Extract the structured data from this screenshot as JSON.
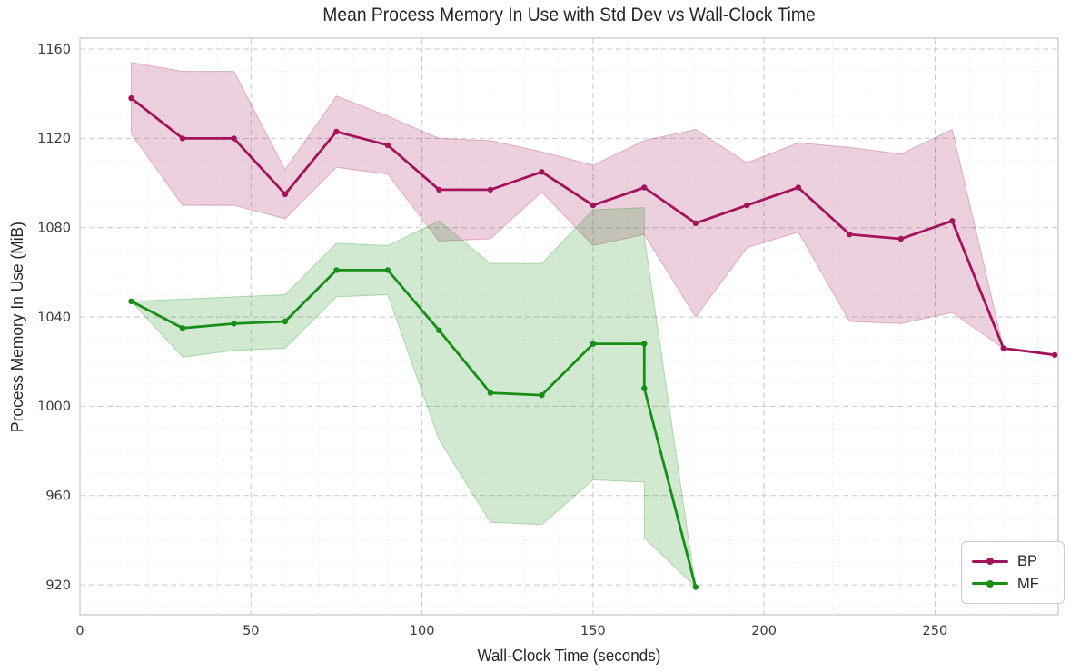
{
  "chart_data": {
    "type": "line",
    "title": "Mean Process Memory In Use with Std Dev vs Wall-Clock Time",
    "xlabel": "Wall-Clock Time (seconds)",
    "ylabel": "Process Memory In Use (MiB)",
    "xlim": [
      0,
      286
    ],
    "ylim": [
      906.6,
      1164.9
    ],
    "xticks": [
      0,
      50,
      100,
      150,
      200,
      250
    ],
    "yticks": [
      920,
      960,
      1000,
      1040,
      1080,
      1120,
      1160
    ],
    "grid": {
      "major": "dashed",
      "minor": "dotted",
      "minor_x_step": 10,
      "minor_y_step": 10
    },
    "band_meaning": "mean ± std dev",
    "legend_position": "lower right",
    "series": [
      {
        "name": "BP",
        "color": "#a3135c",
        "band_fill_alpha": 0.2,
        "x": [
          15,
          30,
          45,
          60,
          75,
          90,
          105,
          120,
          135,
          150,
          165,
          180,
          195,
          210,
          225,
          240,
          255,
          270,
          285
        ],
        "mean": [
          1138,
          1120,
          1120,
          1095,
          1123,
          1117,
          1097,
          1097,
          1105,
          1090,
          1098,
          1082,
          1090,
          1098,
          1077,
          1075,
          1083,
          1026,
          1023
        ],
        "upper": [
          1154,
          1150,
          1150,
          1106,
          1139,
          1130,
          1120,
          1119,
          1114,
          1108,
          1119,
          1124,
          1109,
          1118,
          1116,
          1113,
          1124,
          1026,
          1023
        ],
        "lower": [
          1122,
          1090,
          1090,
          1084,
          1107,
          1104,
          1074,
          1075,
          1096,
          1072,
          1077,
          1040,
          1071,
          1078,
          1038,
          1037,
          1042,
          1026,
          1023
        ]
      },
      {
        "name": "MF",
        "color": "#178f17",
        "band_fill_alpha": 0.2,
        "x": [
          15,
          30,
          45,
          60,
          75,
          90,
          105,
          120,
          135,
          150,
          165,
          165,
          180
        ],
        "mean": [
          1047,
          1035,
          1037,
          1038,
          1061,
          1061,
          1034,
          1006,
          1005,
          1028,
          1028,
          1008,
          919
        ],
        "upper": [
          1047,
          1048,
          1049,
          1050,
          1073,
          1072,
          1083,
          1064,
          1064,
          1088,
          1089,
          1076,
          919
        ],
        "lower": [
          1047,
          1022,
          1025,
          1026,
          1049,
          1050,
          985,
          948,
          947,
          967,
          966,
          941,
          919
        ]
      }
    ]
  }
}
